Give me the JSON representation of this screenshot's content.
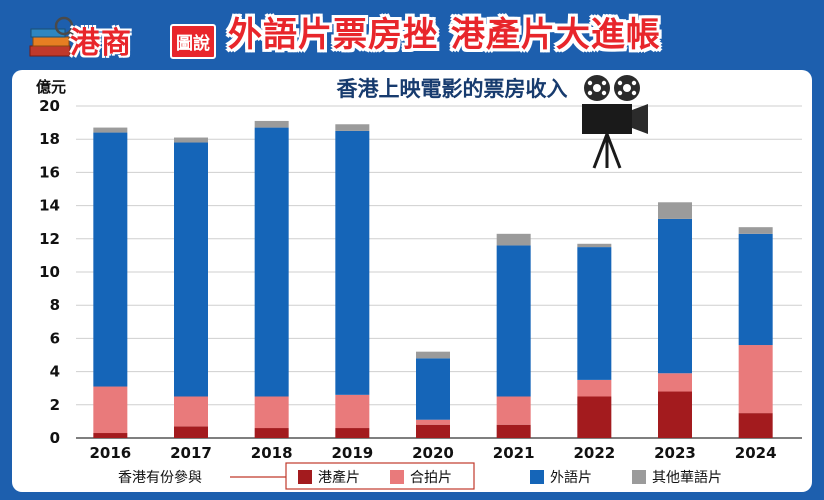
{
  "header": {
    "logo_text": "港商",
    "logo_tag": "圖說",
    "headline": "外語片票房挫 港產片大進帳"
  },
  "colors": {
    "background": "#1d5fae",
    "hk_film": "#a31b1e",
    "co_production": "#e97a7b",
    "foreign_film": "#1565b8",
    "other_chinese": "#9b9b9b"
  },
  "chart_data": {
    "type": "bar",
    "stacked": true,
    "title": "香港上映電影的票房收入",
    "ylabel": "億元",
    "ylim": [
      0,
      20
    ],
    "yticks": [
      0,
      2,
      4,
      6,
      8,
      10,
      12,
      14,
      16,
      18,
      20
    ],
    "grid": true,
    "categories": [
      "2016",
      "2017",
      "2018",
      "2019",
      "2020",
      "2021",
      "2022",
      "2023",
      "2024"
    ],
    "series": [
      {
        "name": "港產片",
        "values": [
          0.3,
          0.7,
          0.6,
          0.6,
          0.8,
          0.8,
          2.5,
          2.8,
          1.5
        ]
      },
      {
        "name": "合拍片",
        "values": [
          2.8,
          1.8,
          1.9,
          2.0,
          0.3,
          1.7,
          1.0,
          1.1,
          4.1
        ]
      },
      {
        "name": "外語片",
        "values": [
          15.3,
          15.3,
          16.2,
          15.9,
          3.7,
          9.1,
          8.0,
          9.3,
          6.7
        ]
      },
      {
        "name": "其他華語片",
        "values": [
          0.3,
          0.3,
          0.4,
          0.4,
          0.4,
          0.7,
          0.2,
          1.0,
          0.4
        ]
      }
    ],
    "legend": {
      "group_label": "香港有份參與",
      "placement": "bottom"
    }
  }
}
